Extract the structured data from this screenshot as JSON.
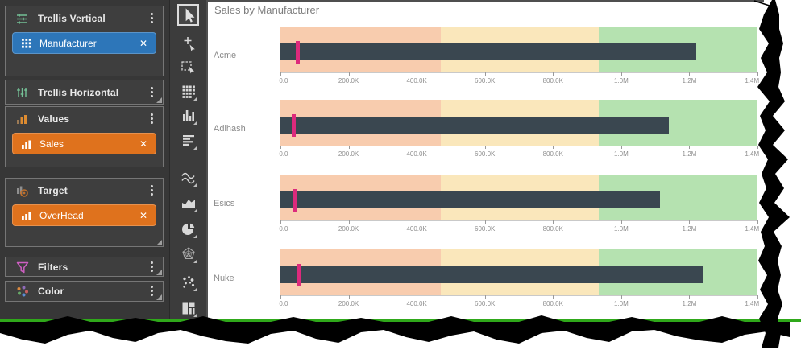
{
  "sidebar": {
    "sections": [
      {
        "label": "Trellis Vertical",
        "icon": "trellis-vertical-icon",
        "menu_icon": "kebab-menu-icon",
        "pill": {
          "label": "Manufacturer",
          "icon": "field-grid-icon",
          "close_icon": "✕",
          "color": "#2d76b9"
        }
      },
      {
        "label": "Trellis Horizontal",
        "icon": "trellis-horizontal-icon",
        "menu_icon": "kebab-menu-icon"
      },
      {
        "label": "Values",
        "icon": "values-bars-icon",
        "menu_icon": "kebab-menu-icon",
        "pill": {
          "label": "Sales",
          "icon": "measure-bars-icon",
          "close_icon": "✕",
          "color": "#df721d"
        }
      },
      {
        "label": "Target",
        "icon": "target-bullseye-icon",
        "menu_icon": "kebab-menu-icon",
        "pill": {
          "label": "OverHead",
          "icon": "measure-bars-icon",
          "close_icon": "✕",
          "color": "#df721d"
        }
      },
      {
        "label": "Filters",
        "icon": "filter-funnel-icon",
        "menu_icon": "kebab-menu-icon"
      },
      {
        "label": "Color",
        "icon": "color-dots-icon",
        "menu_icon": "kebab-menu-icon"
      }
    ]
  },
  "toolbar": {
    "tools": [
      {
        "name": "select-tool",
        "selected": true
      },
      {
        "name": "move-tool",
        "selected": false
      },
      {
        "name": "marquee-select-tool",
        "selected": false
      },
      {
        "name": "grid-view-tool",
        "selected": false
      },
      {
        "name": "column-chart-tool",
        "selected": false
      },
      {
        "name": "bar-chart-tool",
        "selected": false
      },
      {
        "name": "line-chart-tool",
        "selected": false
      },
      {
        "name": "area-chart-tool",
        "selected": false
      },
      {
        "name": "pie-chart-tool",
        "selected": false
      },
      {
        "name": "radar-chart-tool",
        "selected": false
      },
      {
        "name": "scatter-chart-tool",
        "selected": false
      },
      {
        "name": "treemap-tool",
        "selected": false
      }
    ]
  },
  "chart": {
    "title": "Sales by Manufacturer"
  },
  "chart_data": {
    "type": "bar",
    "subtype": "bullet",
    "title": "Sales by Manufacturer",
    "categories": [
      "Acme",
      "Adihash",
      "Esics",
      "Nuke"
    ],
    "series": [
      {
        "name": "Sales",
        "role": "measure",
        "color": "#3a4750",
        "values": [
          1220000,
          1140000,
          1115000,
          1240000
        ]
      },
      {
        "name": "OverHead",
        "role": "target",
        "color": "#dd2a7c",
        "values": [
          50000,
          38000,
          40000,
          55000
        ]
      }
    ],
    "xlim": [
      0,
      1400000
    ],
    "x_ticks": {
      "values": [
        0,
        200000,
        400000,
        600000,
        800000,
        1000000,
        1200000,
        1400000
      ],
      "labels": [
        "0.0",
        "200.0K",
        "400.0K",
        "600.0K",
        "800.0K",
        "1.0M",
        "1.2M",
        "1.4M"
      ]
    },
    "bands": [
      {
        "from": 0,
        "to": 470000,
        "color": "#f8ccae"
      },
      {
        "from": 470000,
        "to": 935000,
        "color": "#fae7bb"
      },
      {
        "from": 935000,
        "to": 1400000,
        "color": "#b5e2b0"
      }
    ],
    "grid": false,
    "legend": false
  },
  "footer": {
    "accent_line_color": "#2fa81a"
  }
}
